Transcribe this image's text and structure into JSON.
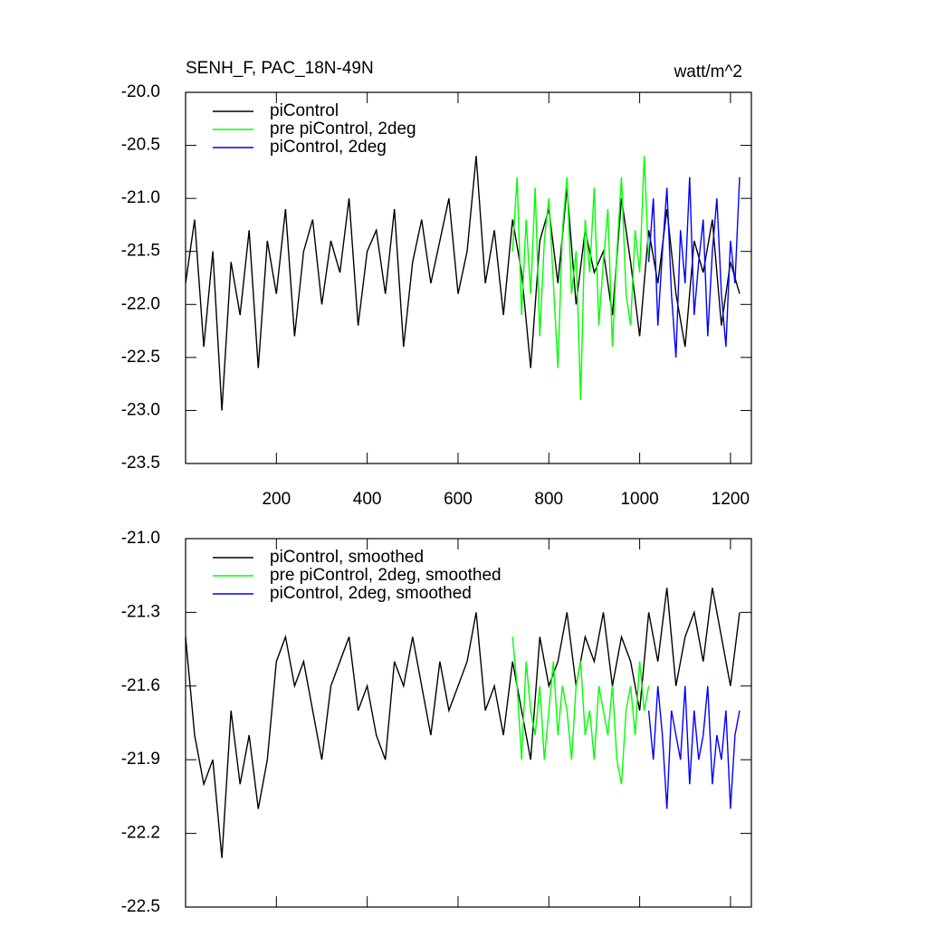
{
  "chart_data": [
    {
      "type": "line",
      "title": "SENH_F, PAC_18N-49N",
      "units": "watt/m^2",
      "xlim": [
        0,
        1246
      ],
      "xticks": [
        200,
        400,
        600,
        800,
        1000,
        1200
      ],
      "xtick_labels": true,
      "ylim": [
        -23.5,
        -20.0
      ],
      "yticks": [
        {
          "value": -20.0,
          "label": "-20.0"
        },
        -20.5,
        {
          "value": -21.0,
          "label": "-21.0"
        },
        -21.5,
        {
          "value": -22.0,
          "label": "-22.0"
        },
        -22.5,
        {
          "value": -23.0,
          "label": "-23.0"
        },
        -23.5
      ],
      "legend": "upper left",
      "series": [
        {
          "name": "piControl",
          "color": "#000000",
          "x": [
            0,
            20,
            40,
            60,
            80,
            100,
            120,
            140,
            160,
            180,
            200,
            220,
            240,
            260,
            280,
            300,
            320,
            340,
            360,
            380,
            400,
            420,
            440,
            460,
            480,
            500,
            520,
            540,
            560,
            580,
            600,
            620,
            640,
            660,
            680,
            700,
            720,
            740,
            760,
            780,
            800,
            820,
            840,
            860,
            880,
            900,
            920,
            940,
            960,
            980,
            1000,
            1020,
            1040,
            1060,
            1080,
            1100,
            1120,
            1140,
            1160,
            1180,
            1200,
            1220
          ],
          "values": [
            -21.8,
            -21.2,
            -22.4,
            -21.5,
            -23.0,
            -21.6,
            -22.1,
            -21.3,
            -22.6,
            -21.4,
            -21.9,
            -21.1,
            -22.3,
            -21.5,
            -21.2,
            -22.0,
            -21.4,
            -21.7,
            -21.0,
            -22.2,
            -21.5,
            -21.3,
            -21.9,
            -21.1,
            -22.4,
            -21.6,
            -21.2,
            -21.8,
            -21.4,
            -21.0,
            -21.9,
            -21.5,
            -20.6,
            -21.8,
            -21.3,
            -22.1,
            -21.2,
            -21.7,
            -22.6,
            -21.4,
            -21.1,
            -21.8,
            -20.9,
            -22.0,
            -21.3,
            -21.7,
            -21.5,
            -22.1,
            -21.0,
            -21.6,
            -22.3,
            -21.3,
            -21.8,
            -21.1,
            -21.9,
            -22.4,
            -21.4,
            -21.7,
            -21.2,
            -22.2,
            -21.6,
            -21.9
          ]
        },
        {
          "name": "pre piControl, 2deg",
          "color": "#00ff00",
          "x": [
            720,
            730,
            740,
            750,
            760,
            770,
            780,
            790,
            800,
            810,
            820,
            830,
            840,
            850,
            860,
            870,
            880,
            890,
            900,
            910,
            920,
            930,
            940,
            950,
            960,
            970,
            980,
            990,
            1000,
            1010,
            1020
          ],
          "values": [
            -21.5,
            -20.8,
            -22.1,
            -21.2,
            -21.9,
            -20.9,
            -22.3,
            -21.4,
            -21.0,
            -21.8,
            -22.6,
            -21.3,
            -20.8,
            -21.9,
            -21.5,
            -22.9,
            -21.2,
            -21.7,
            -20.9,
            -22.2,
            -21.6,
            -21.1,
            -22.4,
            -21.5,
            -20.8,
            -21.9,
            -22.2,
            -21.3,
            -21.7,
            -20.6,
            -21.6
          ]
        },
        {
          "name": "piControl, 2deg",
          "color": "#0000ff",
          "x": [
            1020,
            1030,
            1040,
            1050,
            1060,
            1070,
            1080,
            1090,
            1100,
            1110,
            1120,
            1130,
            1140,
            1150,
            1160,
            1170,
            1180,
            1190,
            1200,
            1210,
            1220
          ],
          "values": [
            -21.6,
            -21.0,
            -22.2,
            -21.5,
            -20.9,
            -21.9,
            -22.5,
            -21.3,
            -21.8,
            -20.8,
            -22.1,
            -21.6,
            -21.2,
            -22.3,
            -21.5,
            -21.0,
            -21.9,
            -22.4,
            -21.4,
            -21.8,
            -20.8
          ]
        }
      ]
    },
    {
      "type": "line",
      "xlim": [
        0,
        1246
      ],
      "xticks": [
        200,
        400,
        600,
        800,
        1000,
        1200
      ],
      "xtick_labels": false,
      "ylim": [
        -22.5,
        -21.0
      ],
      "yticks": [
        {
          "value": -21.0,
          "label": "-21.0"
        },
        -21.3,
        -21.6,
        -21.9,
        -22.2,
        -22.5
      ],
      "legend": "upper left",
      "series": [
        {
          "name": "piControl, smoothed",
          "color": "#000000",
          "x": [
            0,
            20,
            40,
            60,
            80,
            100,
            120,
            140,
            160,
            180,
            200,
            220,
            240,
            260,
            280,
            300,
            320,
            340,
            360,
            380,
            400,
            420,
            440,
            460,
            480,
            500,
            520,
            540,
            560,
            580,
            600,
            620,
            640,
            660,
            680,
            700,
            720,
            740,
            760,
            780,
            800,
            820,
            840,
            860,
            880,
            900,
            920,
            940,
            960,
            980,
            1000,
            1020,
            1040,
            1060,
            1080,
            1100,
            1120,
            1140,
            1160,
            1180,
            1200,
            1220
          ],
          "values": [
            -21.4,
            -21.8,
            -22.0,
            -21.9,
            -22.3,
            -21.7,
            -22.0,
            -21.8,
            -22.1,
            -21.9,
            -21.5,
            -21.4,
            -21.6,
            -21.5,
            -21.7,
            -21.9,
            -21.6,
            -21.5,
            -21.4,
            -21.7,
            -21.6,
            -21.8,
            -21.9,
            -21.5,
            -21.6,
            -21.4,
            -21.6,
            -21.8,
            -21.5,
            -21.7,
            -21.6,
            -21.5,
            -21.3,
            -21.7,
            -21.6,
            -21.8,
            -21.5,
            -21.7,
            -21.9,
            -21.4,
            -21.6,
            -21.5,
            -21.3,
            -21.6,
            -21.4,
            -21.5,
            -21.3,
            -21.6,
            -21.4,
            -21.5,
            -21.7,
            -21.3,
            -21.5,
            -21.2,
            -21.6,
            -21.4,
            -21.3,
            -21.5,
            -21.2,
            -21.4,
            -21.6,
            -21.3
          ]
        },
        {
          "name": "pre piControl, 2deg, smoothed",
          "color": "#00ff00",
          "x": [
            720,
            730,
            740,
            750,
            760,
            770,
            780,
            790,
            800,
            810,
            820,
            830,
            840,
            850,
            860,
            870,
            880,
            890,
            900,
            910,
            920,
            930,
            940,
            950,
            960,
            970,
            980,
            990,
            1000,
            1010,
            1020
          ],
          "values": [
            -21.4,
            -21.6,
            -21.9,
            -21.5,
            -21.7,
            -21.8,
            -21.6,
            -21.9,
            -21.7,
            -21.5,
            -21.8,
            -21.6,
            -21.7,
            -21.9,
            -21.6,
            -21.5,
            -21.8,
            -21.7,
            -21.9,
            -21.6,
            -21.7,
            -21.8,
            -21.6,
            -21.9,
            -22.0,
            -21.7,
            -21.6,
            -21.8,
            -21.5,
            -21.7,
            -21.6
          ]
        },
        {
          "name": "piControl, 2deg, smoothed",
          "color": "#0000ff",
          "x": [
            1020,
            1030,
            1040,
            1050,
            1060,
            1070,
            1080,
            1090,
            1100,
            1110,
            1120,
            1130,
            1140,
            1150,
            1160,
            1170,
            1180,
            1190,
            1200,
            1210,
            1220
          ],
          "values": [
            -21.7,
            -21.9,
            -21.6,
            -21.8,
            -22.1,
            -21.7,
            -21.8,
            -21.9,
            -21.6,
            -22.0,
            -21.7,
            -21.9,
            -21.8,
            -21.6,
            -22.0,
            -21.8,
            -21.9,
            -21.7,
            -22.1,
            -21.8,
            -21.7
          ]
        }
      ]
    }
  ]
}
